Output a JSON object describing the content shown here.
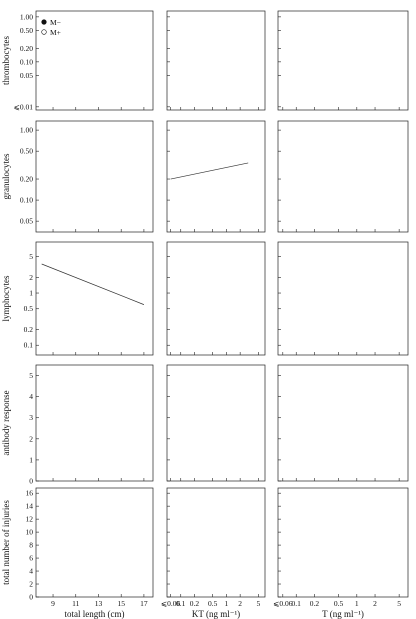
{
  "legend": [
    {
      "label": "M−",
      "marker": "filled"
    },
    {
      "label": "M+",
      "marker": "open"
    }
  ],
  "chart_data": {
    "type": "scatter",
    "layout_grid": {
      "rows": 5,
      "cols": 3
    },
    "x_axes": [
      {
        "label": "total length (cm)",
        "ticks": [
          "9",
          "11",
          "13",
          "15",
          "17"
        ],
        "range": [
          7.5,
          17.8
        ]
      },
      {
        "label": "KT (ng ml⁻¹)",
        "ticks": [
          "⩽0.06",
          "0.1",
          "0.2",
          "0.5",
          "1",
          "2",
          "5"
        ],
        "log": true
      },
      {
        "label": "T (ng ml⁻¹)",
        "ticks": [
          "⩽0.06",
          "0.1",
          "0.2",
          "0.5",
          "1",
          "2",
          "5"
        ],
        "log": true
      }
    ],
    "y_axes": [
      {
        "label": "thrombocytes",
        "ticks": [
          "⩽0.01",
          "0.05",
          "0.10",
          "0.20",
          "0.50",
          "1.00"
        ],
        "log": true
      },
      {
        "label": "granulocytes",
        "ticks": [
          "0.05",
          "0.10",
          "0.20",
          "0.50",
          "1.00"
        ],
        "log": true
      },
      {
        "label": "lymphocytes",
        "ticks": [
          "0.1",
          "0.2",
          "0.5",
          "1",
          "2",
          "5"
        ],
        "log": true
      },
      {
        "label": "antibody response",
        "ticks": [
          "0",
          "1",
          "2",
          "3",
          "4",
          "5"
        ],
        "range": [
          0,
          5.5
        ]
      },
      {
        "label": "total number of injuries",
        "ticks": [
          "0",
          "2",
          "4",
          "6",
          "8",
          "10",
          "12",
          "14",
          "16"
        ],
        "range": [
          0,
          16.8
        ]
      }
    ],
    "regression_lines": [
      {
        "row": 2,
        "col": 2,
        "x": [
          0.06,
          3.0
        ],
        "y": [
          0.2,
          0.34
        ]
      },
      {
        "row": 3,
        "col": 1,
        "x": [
          8.0,
          17.0
        ],
        "y": [
          3.6,
          0.6
        ]
      }
    ],
    "series": [
      {
        "name": "M−",
        "marker": "filled"
      },
      {
        "name": "M+",
        "marker": "open"
      }
    ]
  }
}
